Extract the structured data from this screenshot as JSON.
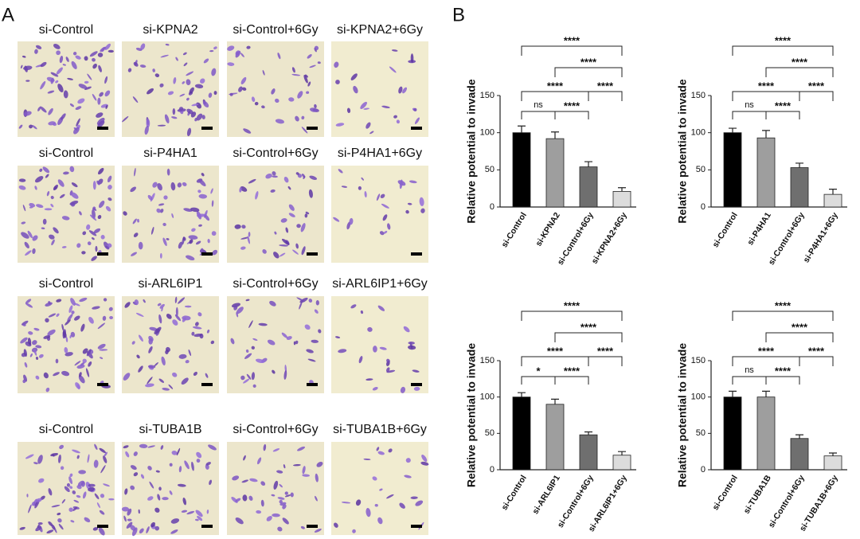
{
  "panel_a": {
    "label": "A",
    "rows": [
      [
        "si-Control",
        "si-KPNA2",
        "si-Control+6Gy",
        "si-KPNA2+6Gy"
      ],
      [
        "si-Control",
        "si-P4HA1",
        "si-Control+6Gy",
        "si-P4HA1+6Gy"
      ],
      [
        "si-Control",
        "si-ARL6IP1",
        "si-Control+6Gy",
        "si-ARL6IP1+6Gy"
      ],
      [
        "si-Control",
        "si-TUBA1B",
        "si-Control+6Gy",
        "si-TUBA1B+6Gy"
      ]
    ]
  },
  "panel_b_label": "B",
  "chart_data": [
    {
      "type": "bar",
      "ylabel": "Relative potential to invade",
      "categories": [
        "si-Control",
        "si-KPNA2",
        "si-Control+6Gy",
        "si-KPNA2+6Gy"
      ],
      "values": [
        100,
        92,
        54,
        21
      ],
      "errors": [
        9,
        9,
        7,
        5
      ],
      "colors": [
        "#000000",
        "#9e9e9e",
        "#6f6f6f",
        "#dcdcdc"
      ],
      "ylim": [
        0,
        150
      ],
      "yticks": [
        0,
        50,
        100,
        150
      ],
      "significance": [
        "ns",
        "****",
        "****",
        "****",
        "****",
        "****"
      ]
    },
    {
      "type": "bar",
      "ylabel": "Relative potential to invade",
      "categories": [
        "si-Control",
        "si-P4HA1",
        "si-Control+6Gy",
        "si-P4HA1+6Gy"
      ],
      "values": [
        100,
        93,
        53,
        17
      ],
      "errors": [
        6,
        10,
        6,
        7
      ],
      "colors": [
        "#000000",
        "#9e9e9e",
        "#6f6f6f",
        "#dcdcdc"
      ],
      "ylim": [
        0,
        150
      ],
      "yticks": [
        0,
        50,
        100,
        150
      ],
      "significance": [
        "ns",
        "****",
        "****",
        "****",
        "****",
        "****"
      ]
    },
    {
      "type": "bar",
      "ylabel": "Relative potential to invade",
      "categories": [
        "si-Control",
        "si-ARL6IP1",
        "si-Control+6Gy",
        "si-ARL6IP1+6Gy"
      ],
      "values": [
        100,
        90,
        48,
        20
      ],
      "errors": [
        6,
        7,
        4,
        5
      ],
      "colors": [
        "#000000",
        "#9e9e9e",
        "#6f6f6f",
        "#dcdcdc"
      ],
      "ylim": [
        0,
        150
      ],
      "yticks": [
        0,
        50,
        100,
        150
      ],
      "significance": [
        "*",
        "****",
        "****",
        "****",
        "****",
        "****"
      ]
    },
    {
      "type": "bar",
      "ylabel": "Relative potential to invade",
      "categories": [
        "si-Control",
        "si-TUBA1B",
        "si-Control+6Gy",
        "si-TUBA1B+6Gy"
      ],
      "values": [
        100,
        100,
        43,
        19
      ],
      "errors": [
        8,
        8,
        5,
        4
      ],
      "colors": [
        "#000000",
        "#9e9e9e",
        "#6f6f6f",
        "#dcdcdc"
      ],
      "ylim": [
        0,
        150
      ],
      "yticks": [
        0,
        50,
        100,
        150
      ],
      "significance": [
        "ns",
        "****",
        "****",
        "****",
        "****",
        "****"
      ]
    }
  ]
}
